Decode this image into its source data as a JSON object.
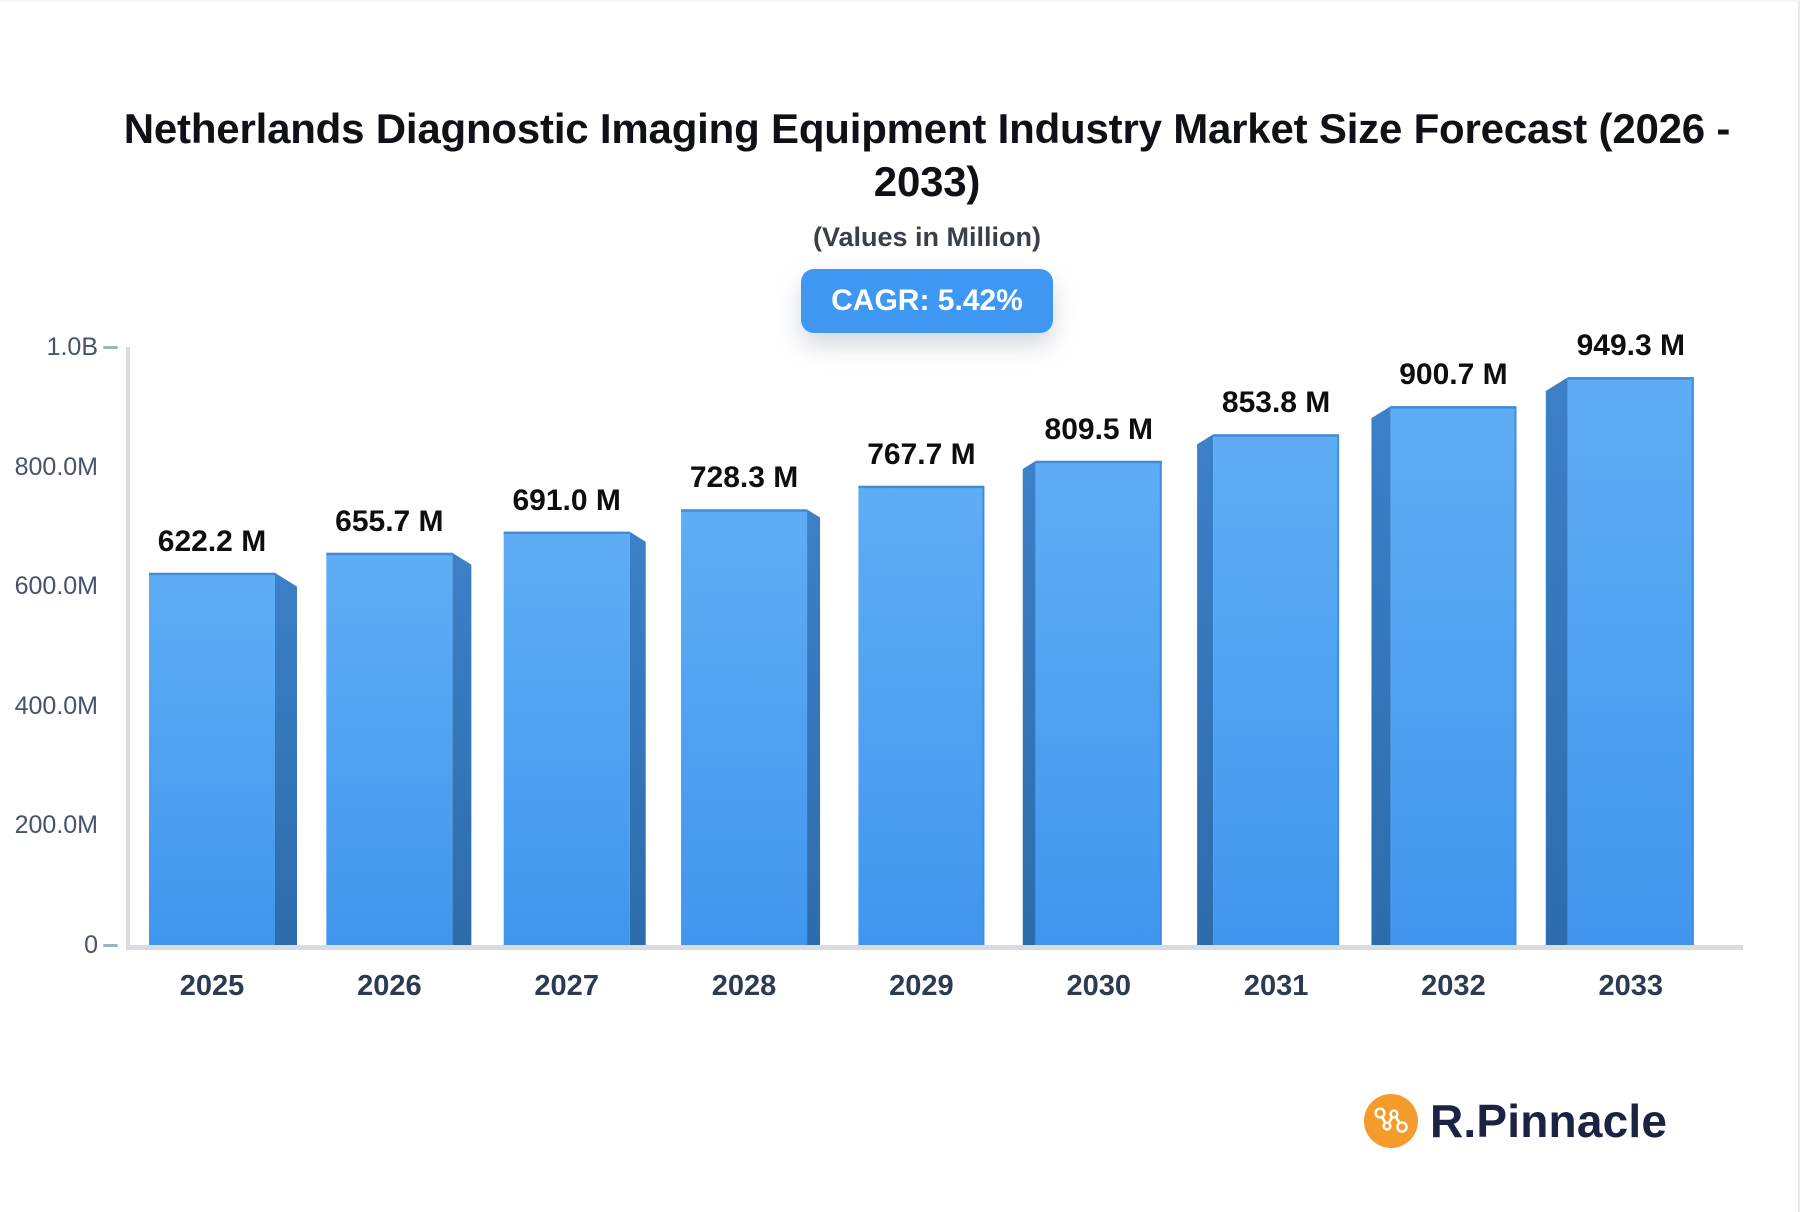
{
  "header": {
    "title_lines": [
      "Netherlands Diagnostic Imaging Equipment Industry Market Size Forecast (2026 -",
      "2033)"
    ],
    "subtitle": "(Values in Million)",
    "cagr_label": "CAGR: 5.42%"
  },
  "chart_data": {
    "type": "bar",
    "title": "Netherlands Diagnostic Imaging Equipment Industry Market Size Forecast (2026 - 2033)",
    "subtitle": "(Values in Million)",
    "cagr": "5.42%",
    "categories": [
      "2025",
      "2026",
      "2027",
      "2028",
      "2029",
      "2030",
      "2031",
      "2032",
      "2033"
    ],
    "values": [
      622.2,
      655.7,
      691.0,
      728.3,
      767.7,
      809.5,
      853.8,
      900.7,
      949.3
    ],
    "bar_labels": [
      "622.2 M",
      "655.7 M",
      "691.0 M",
      "728.3 M",
      "767.7 M",
      "809.5 M",
      "853.8 M",
      "900.7 M",
      "949.3 M"
    ],
    "unit": "Million",
    "xlabel": "",
    "ylabel": "",
    "ylim": [
      0,
      1000
    ],
    "axis_max_million": 1000,
    "y_tick_labels": [
      "1.0B",
      "800.0M",
      "600.0M",
      "400.0M",
      "200.0M",
      "0"
    ],
    "grid": false,
    "legend": false
  },
  "branding": {
    "logo_text": "R.Pinnacle"
  },
  "colors": {
    "accent": "#3e98f2",
    "bar_face_top": "#5fadf4",
    "bar_face_bottom": "#4096ee",
    "bar_side_top": "#3c80c8",
    "bar_side_bottom": "#2d6cab",
    "bar_top_edge": "#4189d3",
    "bar_dark_edge": "#3f8ee0",
    "axis": "#d9dbe0",
    "tick": "#9db1c7",
    "logo_orange": "#f59b2c",
    "logo_navy": "#1b2342"
  }
}
